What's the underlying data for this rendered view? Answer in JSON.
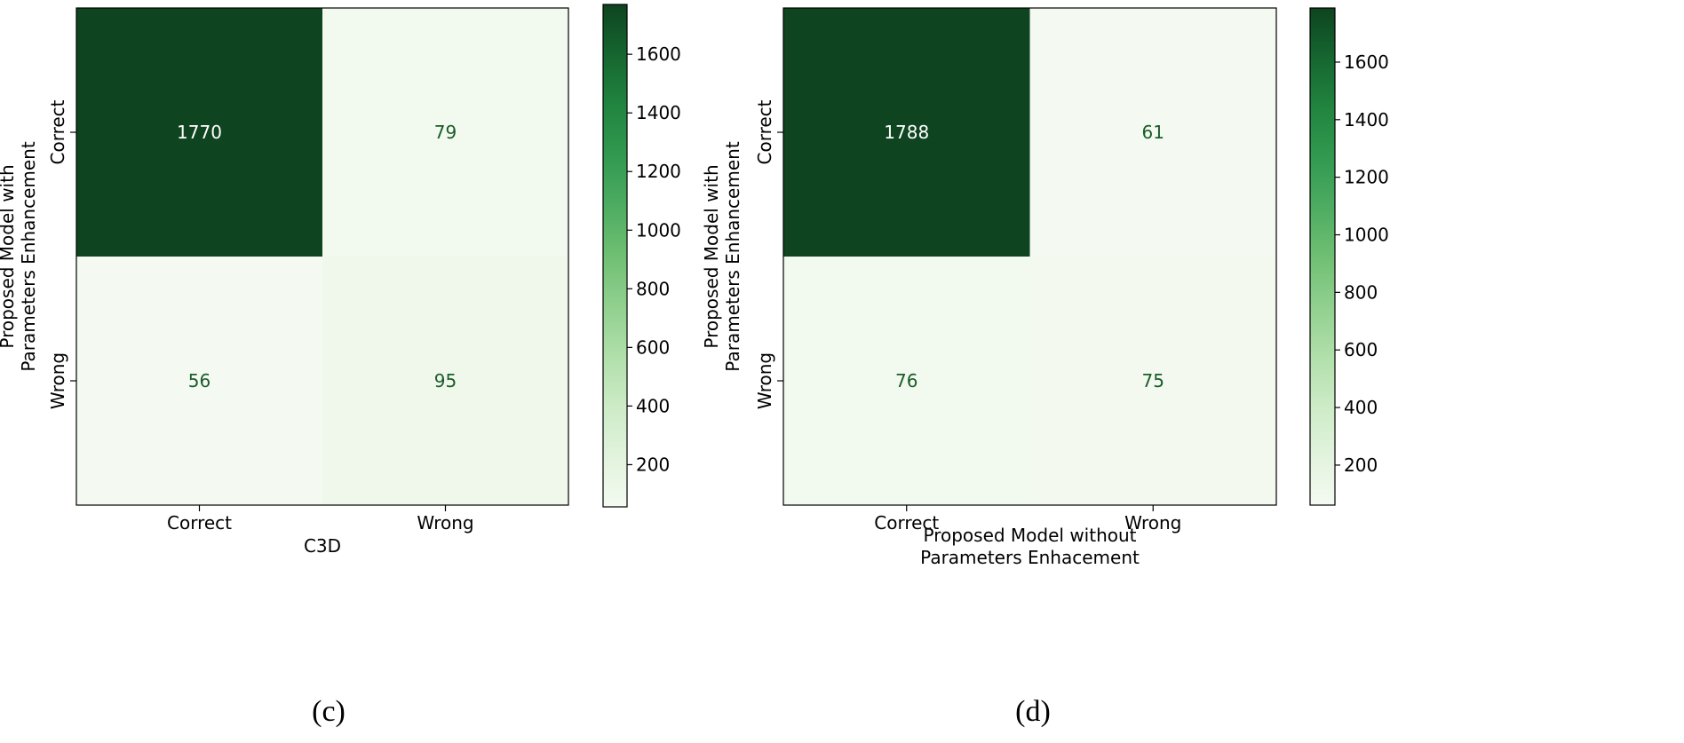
{
  "chart_data": [
    {
      "type": "heatmap",
      "x_categories": [
        "Correct",
        "Wrong"
      ],
      "y_categories": [
        "Correct",
        "Wrong"
      ],
      "values": [
        [
          1770,
          79
        ],
        [
          56,
          95
        ]
      ],
      "xlabel": [
        "C3D"
      ],
      "ylabel": [
        "Proposed Model with",
        "Parameters Enhancement"
      ],
      "colorbar": {
        "ticks": [
          "200",
          "400",
          "600",
          "800",
          "1000",
          "1200",
          "1400",
          "1600"
        ],
        "range": [
          56,
          1770
        ]
      },
      "caption": "(c)",
      "colors": {
        "high": "#0e4420",
        "low": "#f4faf1",
        "text_on_dark": "#ffffff",
        "text_on_light": "#1a5c2a"
      }
    },
    {
      "type": "heatmap",
      "x_categories": [
        "Correct",
        "Wrong"
      ],
      "y_categories": [
        "Correct",
        "Wrong"
      ],
      "values": [
        [
          1788,
          61
        ],
        [
          76,
          75
        ]
      ],
      "xlabel": [
        "Proposed Model without",
        "Parameters Enhacement"
      ],
      "ylabel": [
        "Proposed Model with",
        "Parameters Enhancement"
      ],
      "colorbar": {
        "ticks": [
          "200",
          "400",
          "600",
          "800",
          "1000",
          "1200",
          "1400",
          "1600"
        ],
        "range": [
          61,
          1788
        ]
      },
      "caption": "(d)",
      "colors": {
        "high": "#0e4420",
        "low": "#f4faf1",
        "text_on_dark": "#ffffff",
        "text_on_light": "#1a5c2a"
      }
    }
  ]
}
